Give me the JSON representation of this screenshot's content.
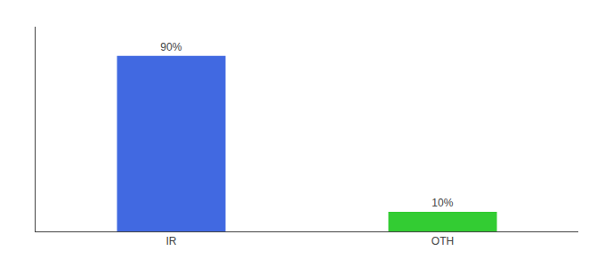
{
  "chart_data": {
    "type": "bar",
    "categories": [
      "IR",
      "OTH"
    ],
    "values": [
      90,
      10
    ],
    "value_labels": [
      "90%",
      "10%"
    ],
    "colors": [
      "#4169e1",
      "#33cc33"
    ],
    "data_labels": true,
    "ylim": [
      0,
      105
    ],
    "yticks": [],
    "tick_labels": "x",
    "grid": false
  }
}
